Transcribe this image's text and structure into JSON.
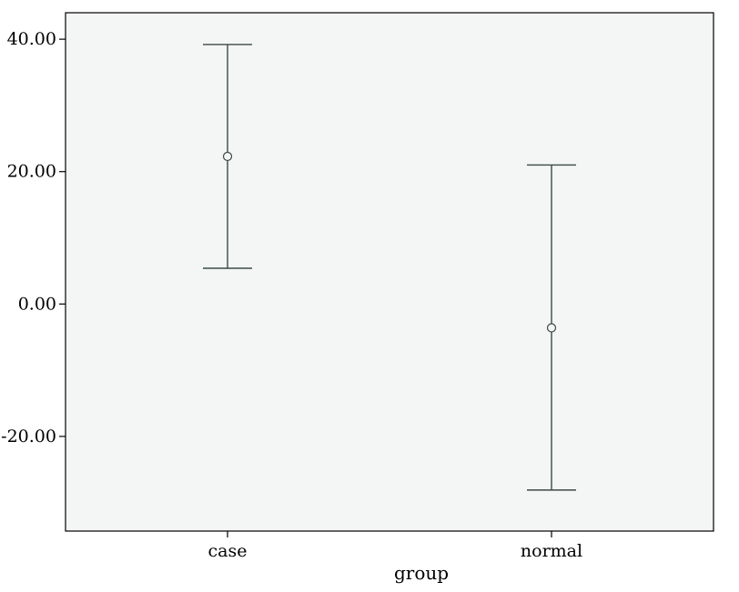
{
  "chart_data": {
    "type": "error-bar",
    "xlabel": "group",
    "ylabel": "",
    "title": "",
    "categories": [
      "case",
      "normal"
    ],
    "mean": [
      22.3,
      -3.6
    ],
    "lower": [
      5.4,
      -28.1
    ],
    "upper": [
      39.2,
      21.0
    ],
    "ylim": [
      -34.3,
      44.0
    ],
    "yticks": [
      -20,
      0,
      20,
      40
    ],
    "ytick_labels": [
      "-20.00",
      "0.00",
      "20.00",
      "40.00"
    ],
    "grid": false,
    "legend": "none",
    "colors": {
      "plot_background": "#f4f6f5",
      "frame": "#000000",
      "marker": "#3a4a48",
      "error_bar": "#3a4a48"
    }
  }
}
